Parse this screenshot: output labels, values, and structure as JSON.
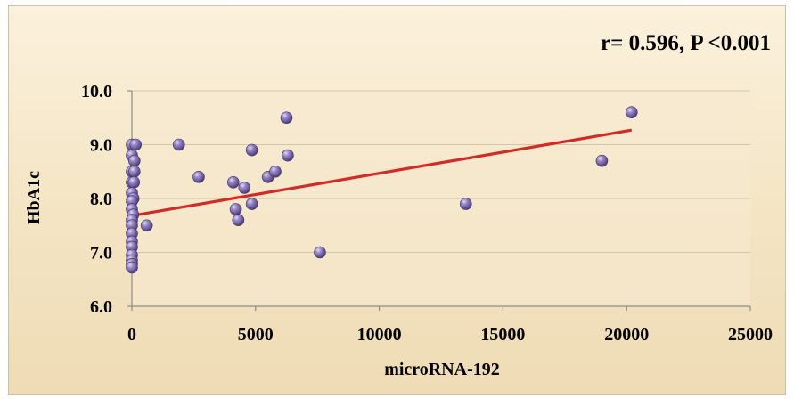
{
  "chart_data": {
    "type": "scatter",
    "annotation": "r= 0.596, P <0.001",
    "xlabel": "microRNA-192",
    "ylabel": "HbA1c",
    "xlim": [
      0,
      25000
    ],
    "ylim": [
      6.0,
      10.0
    ],
    "x_ticks": [
      "0",
      "5000",
      "10000",
      "15000",
      "20000",
      "25000"
    ],
    "y_ticks": [
      "6.0",
      "7.0",
      "8.0",
      "9.0",
      "10.0"
    ],
    "grid": "horizontal",
    "legend": "none",
    "marker_color": "#8a79b8",
    "trendline_color": "#d42a25",
    "trendline": {
      "x": [
        0,
        20200
      ],
      "y": [
        7.68,
        9.27
      ]
    },
    "points": [
      {
        "x": 0,
        "y": 9.0
      },
      {
        "x": 150,
        "y": 9.0
      },
      {
        "x": 0,
        "y": 8.8
      },
      {
        "x": 100,
        "y": 8.7
      },
      {
        "x": 0,
        "y": 8.5
      },
      {
        "x": 100,
        "y": 8.5
      },
      {
        "x": 0,
        "y": 8.3
      },
      {
        "x": 80,
        "y": 8.3
      },
      {
        "x": 0,
        "y": 8.1
      },
      {
        "x": 60,
        "y": 8.0
      },
      {
        "x": 0,
        "y": 7.95
      },
      {
        "x": 0,
        "y": 7.8
      },
      {
        "x": 50,
        "y": 7.7
      },
      {
        "x": 0,
        "y": 7.6
      },
      {
        "x": 0,
        "y": 7.5
      },
      {
        "x": 0,
        "y": 7.35
      },
      {
        "x": 0,
        "y": 7.2
      },
      {
        "x": 0,
        "y": 7.1
      },
      {
        "x": 0,
        "y": 6.95
      },
      {
        "x": 0,
        "y": 6.85
      },
      {
        "x": 0,
        "y": 6.78
      },
      {
        "x": 0,
        "y": 6.72
      },
      {
        "x": 600,
        "y": 7.5
      },
      {
        "x": 1900,
        "y": 9.0
      },
      {
        "x": 2700,
        "y": 8.4
      },
      {
        "x": 4100,
        "y": 8.3
      },
      {
        "x": 4200,
        "y": 7.8
      },
      {
        "x": 4300,
        "y": 7.6
      },
      {
        "x": 4550,
        "y": 8.2
      },
      {
        "x": 4850,
        "y": 8.9
      },
      {
        "x": 4850,
        "y": 7.9
      },
      {
        "x": 5500,
        "y": 8.4
      },
      {
        "x": 5800,
        "y": 8.5
      },
      {
        "x": 6250,
        "y": 9.5
      },
      {
        "x": 6300,
        "y": 8.8
      },
      {
        "x": 7600,
        "y": 7.0
      },
      {
        "x": 13500,
        "y": 7.9
      },
      {
        "x": 19000,
        "y": 8.7
      },
      {
        "x": 20200,
        "y": 9.6
      }
    ]
  }
}
